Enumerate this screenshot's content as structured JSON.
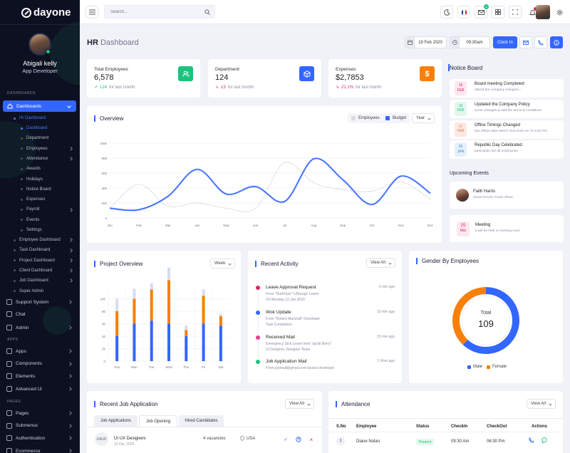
{
  "brand": {
    "name": "dayone"
  },
  "profile": {
    "name": "Abigali kelly",
    "role": "App Developer"
  },
  "sidebar": {
    "section_dashboards": "DASHBOARDS",
    "active": "Dashboards",
    "hr_dashboard": "Hr Dashboard",
    "sub": [
      "Dashboard",
      "Department",
      "Employees",
      "Attendance",
      "Awards",
      "Holidays",
      "Notice Board",
      "Expenses",
      "Payroll",
      "Events",
      "Settings"
    ],
    "dash_items": [
      "Employee Dashboard",
      "Task Dashboard",
      "Project Dashboard",
      "Client Dashboard",
      "Job Dashboard",
      "Super Admin"
    ],
    "main_items": [
      "Support System",
      "Chat",
      "Admin"
    ],
    "section_apps": "APPS",
    "apps": [
      "Apps",
      "Components",
      "Elements",
      "Advanced Ui"
    ],
    "section_pages": "PAGES",
    "pages": [
      "Pages",
      "Submenus",
      "Authentication",
      "Ecommerce"
    ]
  },
  "header": {
    "search_placeholder": "Search...",
    "mail_badge": "3"
  },
  "page": {
    "title_strong": "HR",
    "title_rest": " Dashboard",
    "date": "19 Feb 2020",
    "time": "09:30am",
    "clockin": "Clock In"
  },
  "stats": [
    {
      "label": "Total Employees",
      "value": "6,578",
      "delta": "124",
      "sub": "for last month",
      "dir": "up"
    },
    {
      "label": "Department",
      "value": "124",
      "delta": "13",
      "sub": "for last month",
      "dir": "down"
    },
    {
      "label": "Expenses",
      "value": "$2,7853",
      "delta": "21.1%",
      "sub": "for last month",
      "dir": "down"
    }
  ],
  "overview": {
    "title": "Overview",
    "legend": [
      "Employees",
      "Budget"
    ],
    "filter": "Year"
  },
  "chart_data": [
    {
      "type": "line",
      "title": "Overview",
      "x": [
        "Jan",
        "Feb",
        "Mar",
        "Apr",
        "May",
        "Jun",
        "Jul",
        "Aug",
        "Sep",
        "Oct",
        "Nov",
        "Dec"
      ],
      "yticks": [
        0,
        200,
        400,
        600,
        800,
        1000
      ],
      "ylim": [
        0,
        1000
      ],
      "series": [
        {
          "name": "Budget",
          "values": [
            130,
            110,
            290,
            650,
            320,
            420,
            220,
            790,
            510,
            180,
            560,
            330
          ]
        },
        {
          "name": "Employees",
          "values": [
            130,
            450,
            160,
            200,
            130,
            130,
            740,
            470,
            380,
            360,
            480,
            250
          ]
        }
      ]
    },
    {
      "type": "bar",
      "title": "Project Overview",
      "categories": [
        "Sun",
        "Mon",
        "Tue",
        "Wed",
        "Thu",
        "Fri",
        "Sat"
      ],
      "yticks": [
        0,
        20,
        40,
        60,
        80,
        100
      ],
      "ylim": [
        0,
        120
      ],
      "series": [
        {
          "values": [
            40,
            60,
            65,
            60,
            40,
            60,
            57
          ]
        },
        {
          "values": [
            40,
            40,
            50,
            70,
            10,
            45,
            15
          ]
        },
        {
          "values": [
            20,
            16,
            10,
            20,
            7,
            10,
            4
          ]
        }
      ]
    },
    {
      "type": "pie",
      "title": "Gender By Employees",
      "labels": [
        "Male",
        "Female"
      ],
      "values": [
        62,
        38
      ],
      "center_label": "Total",
      "center_value": "109"
    }
  ],
  "project": {
    "title": "Project Overview",
    "filter": "Week"
  },
  "activity": {
    "title": "Recent Activity",
    "viewall": "View All",
    "items": [
      {
        "title": "Leave Approval Request",
        "l1": "From \"RuthDyer\" UiDesign Leave",
        "l2": "On Monday 12 Jan 2020.",
        "time": "6 min ago",
        "color": "#e0245e"
      },
      {
        "title": "Wok Update",
        "l1": "From \"Robert Marshall\" Developer",
        "l2": "Task Completed.",
        "time": "10 min ago",
        "color": "#3366ff"
      },
      {
        "title": "Received Mail",
        "l1": "Emergency Sick Leave from \"jacob Berry\"",
        "l2": "Ui Designer, Designer Team.",
        "time": "15 min ago",
        "color": "#e83e8c"
      },
      {
        "title": "Job Application Mail",
        "l1": "From jobmail@gmail.com laravel developer.",
        "l2": "",
        "time": "1 Hour ago",
        "color": "#1bc47d"
      }
    ]
  },
  "gender": {
    "title": "Gender By Employees",
    "male": "Male",
    "female": "Female",
    "total_label": "Total",
    "total": "109"
  },
  "notice": {
    "title": "Notice Board",
    "items": [
      {
        "day": "18",
        "mon": "FEB",
        "title": "Board meeting Completed",
        "sub": "attend the company mangers...",
        "bg": "#fde8ef",
        "fg": "#e0245e"
      },
      {
        "day": "16",
        "mon": "FEB",
        "title": "Updated the Company Policy",
        "sub": "some changes & add the terms & conditions",
        "bg": "#e3f7ee",
        "fg": "#1bc47d"
      },
      {
        "day": "17",
        "mon": "FEB",
        "title": "Office Timings Changed",
        "sub": "this effetct after March 01st 9:00 Am To 5:00 Pm",
        "bg": "#fde9e2",
        "fg": "#f06b3a"
      },
      {
        "day": "26",
        "mon": "JAN",
        "title": "Republic Day Celebrated",
        "sub": "participate the all employees",
        "bg": "#e5f0fb",
        "fg": "#3d8bd9"
      }
    ]
  },
  "events": {
    "title": "Upcoming Events",
    "e1_name": "Faith Harris",
    "e1_sub": "Smart Device Trade Show",
    "e2_day": "25",
    "e2_mon": "Mar",
    "e2_name": "Meeting",
    "e2_sub": "it will be held in meeting room"
  },
  "jobs": {
    "title": "Recent Job Application",
    "viewall": "View All",
    "tabs": [
      "Job Applications",
      "Job Opening",
      "Hired Candidates"
    ],
    "row": {
      "abbr": "UI/UX",
      "name": "UI UX Designers",
      "date": "12 Dec 2020",
      "vacancies": "4 vacancies",
      "location": "USA"
    }
  },
  "attendance": {
    "title": "Attendance",
    "viewall": "View All",
    "cols": [
      "S.No",
      "Employee",
      "Status",
      "CheckIn",
      "CheckOut",
      "Actions"
    ],
    "row": {
      "no": "1",
      "name": "Diane Nolan",
      "status": "Present",
      "in": "09:30 Am",
      "out": "06:30 Pm"
    }
  },
  "colors": {
    "accent": "#3366ff",
    "green": "#1bc47d",
    "orange": "#f7800a",
    "bg": "#f0f2f8",
    "sidebar": "#0d1021"
  }
}
